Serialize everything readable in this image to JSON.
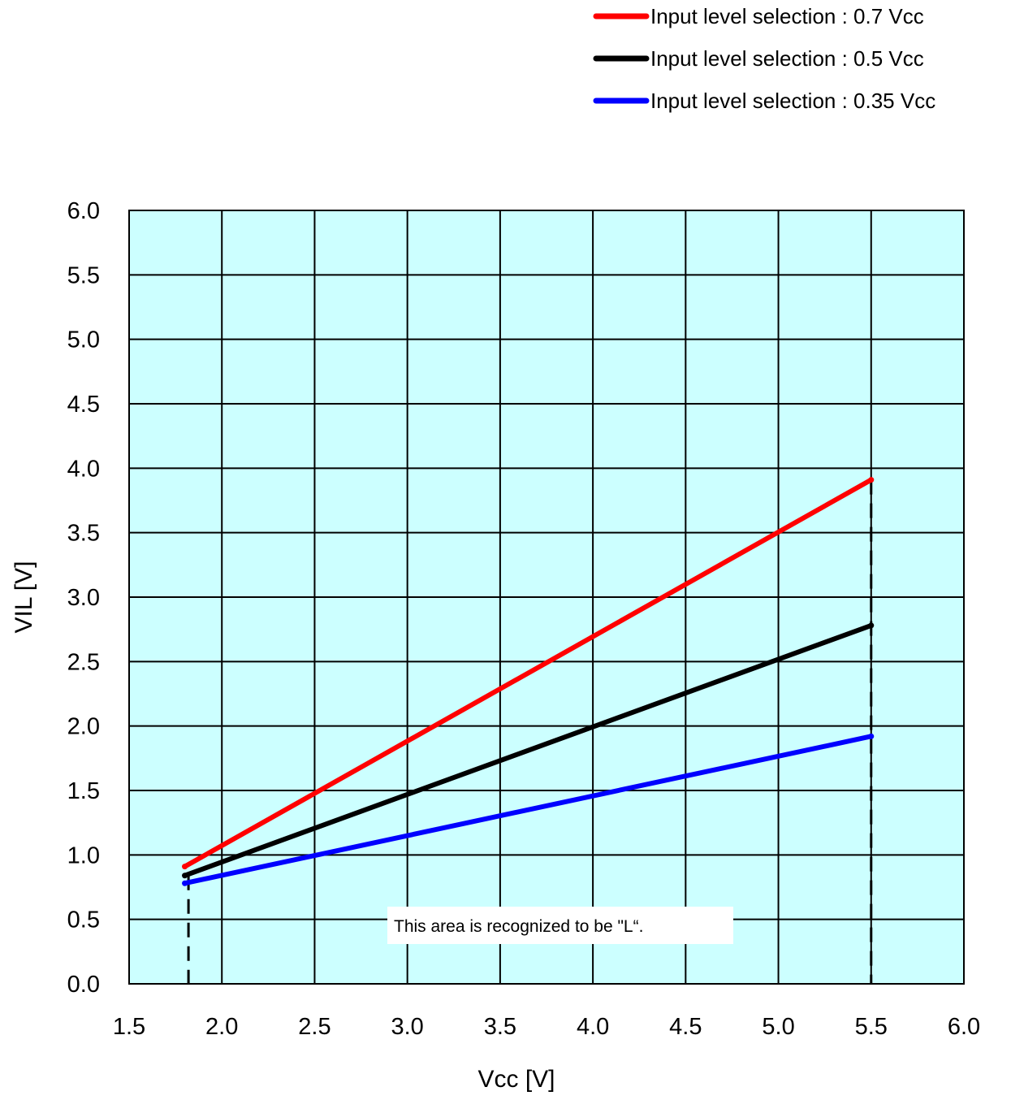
{
  "chart_data": {
    "type": "line",
    "xlabel": "Vcc [V]",
    "ylabel": "VIL [V]",
    "xlim": [
      1.5,
      6.0
    ],
    "ylim": [
      0.0,
      6.0
    ],
    "xticks": [
      "1.5",
      "2.0",
      "2.5",
      "3.0",
      "3.5",
      "4.0",
      "4.5",
      "5.0",
      "5.5",
      "6.0"
    ],
    "yticks": [
      "0.0",
      "0.5",
      "1.0",
      "1.5",
      "2.0",
      "2.5",
      "3.0",
      "3.5",
      "4.0",
      "4.5",
      "5.0",
      "5.5",
      "6.0"
    ],
    "grid": true,
    "plot_background": "#ccffff",
    "legend_position": "top-right",
    "annotation": "This area is recognized to be \"L“.",
    "series": [
      {
        "name": "Input level selection : 0.7 Vcc",
        "color": "#ff0000",
        "x": [
          1.8,
          5.5
        ],
        "y": [
          0.91,
          3.91
        ]
      },
      {
        "name": "Input level selection : 0.5 Vcc",
        "color": "#000000",
        "x": [
          1.8,
          5.5
        ],
        "y": [
          0.84,
          2.78
        ]
      },
      {
        "name": "Input level selection : 0.35 Vcc",
        "color": "#0000ff",
        "x": [
          1.8,
          5.5
        ],
        "y": [
          0.78,
          1.92
        ]
      }
    ],
    "reference_lines": [
      {
        "type": "vertical",
        "style": "dashed",
        "x": 1.82,
        "y_top": 0.84
      },
      {
        "type": "vertical",
        "style": "dashed",
        "x": 5.5,
        "y_top": 3.91
      }
    ]
  }
}
